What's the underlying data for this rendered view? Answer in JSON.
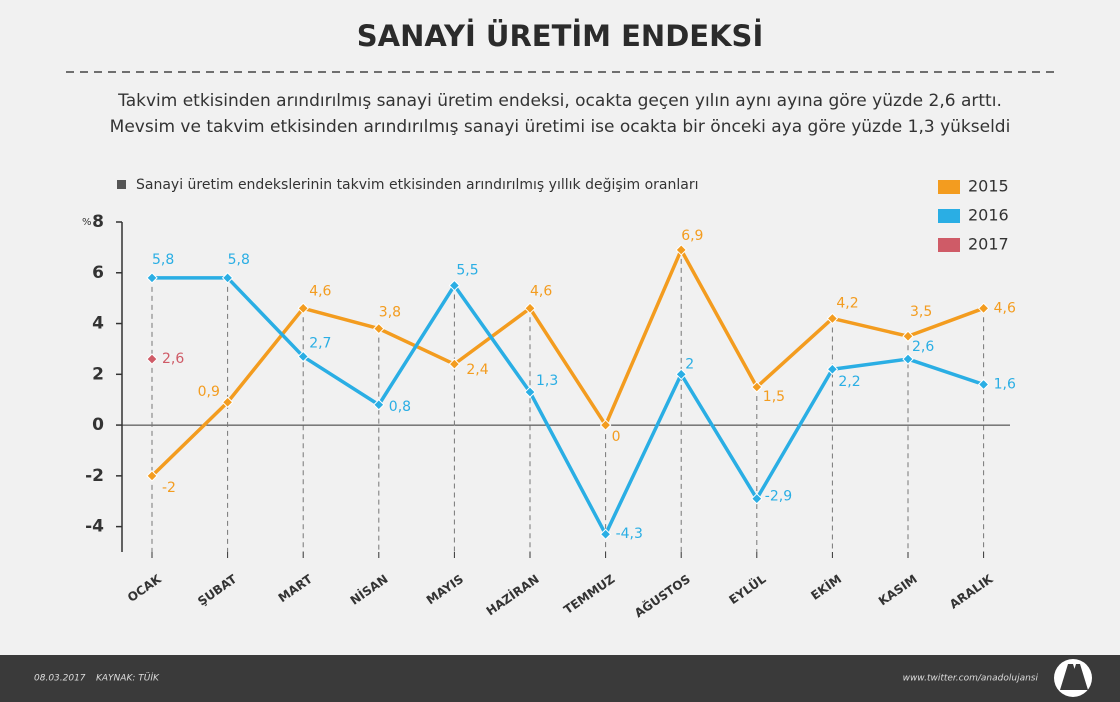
{
  "chart_data": {
    "type": "line",
    "title": "SANAYİ ÜRETİM ENDEKSİ",
    "subtitle": [
      "Takvim etkisinden arındırılmış sanayi üretim endeksi, ocakta geçen yılın aynı ayına göre yüzde 2,6 arttı.",
      "Mevsim ve takvim etkisinden arındırılmış sanayi üretimi ise ocakta bir önceki aya göre yüzde 1,3 yükseldi"
    ],
    "chart_title": "Sanayi üretim endekslerinin takvim etkisinden arındırılmış yıllık değişim oranları",
    "y_unit": "%",
    "categories": [
      "OCAK",
      "ŞUBAT",
      "MART",
      "NİSAN",
      "MAYIS",
      "HAZİRAN",
      "TEMMUZ",
      "AĞUSTOS",
      "EYLÜL",
      "EKİM",
      "KASIM",
      "ARALIK"
    ],
    "series": [
      {
        "name": "2015",
        "color": "#f39c1f",
        "values": [
          -2,
          0.9,
          4.6,
          3.8,
          2.4,
          4.6,
          0,
          6.9,
          1.5,
          4.2,
          3.5,
          4.6
        ],
        "value_labels": [
          "-2",
          "0,9",
          "4,6",
          "3,8",
          "2,4",
          "4,6",
          "0",
          "6,9",
          "1,5",
          "4,2",
          "3,5",
          "4,6"
        ]
      },
      {
        "name": "2016",
        "color": "#2aaee4",
        "values": [
          5.8,
          5.8,
          2.7,
          0.8,
          5.5,
          1.3,
          -4.3,
          2,
          -2.9,
          2.2,
          2.6,
          1.6
        ],
        "value_labels": [
          "5,8",
          "5,8",
          "2,7",
          "0,8",
          "5,5",
          "1,3",
          "-4,3",
          "2",
          "-2,9",
          "2,2",
          "2,6",
          "1,6"
        ]
      },
      {
        "name": "2017",
        "color": "#cf5b67",
        "values": [
          2.6,
          null,
          null,
          null,
          null,
          null,
          null,
          null,
          null,
          null,
          null,
          null
        ],
        "value_labels": [
          "2,6",
          null,
          null,
          null,
          null,
          null,
          null,
          null,
          null,
          null,
          null,
          null
        ]
      }
    ],
    "ylim": [
      -5,
      8
    ],
    "yticks": [
      -4,
      -2,
      0,
      2,
      4,
      6,
      8
    ],
    "footer": {
      "date": "08.03.2017",
      "source": "KAYNAK: TÜİK",
      "url": "www.twitter.com/anadolujansi"
    }
  }
}
